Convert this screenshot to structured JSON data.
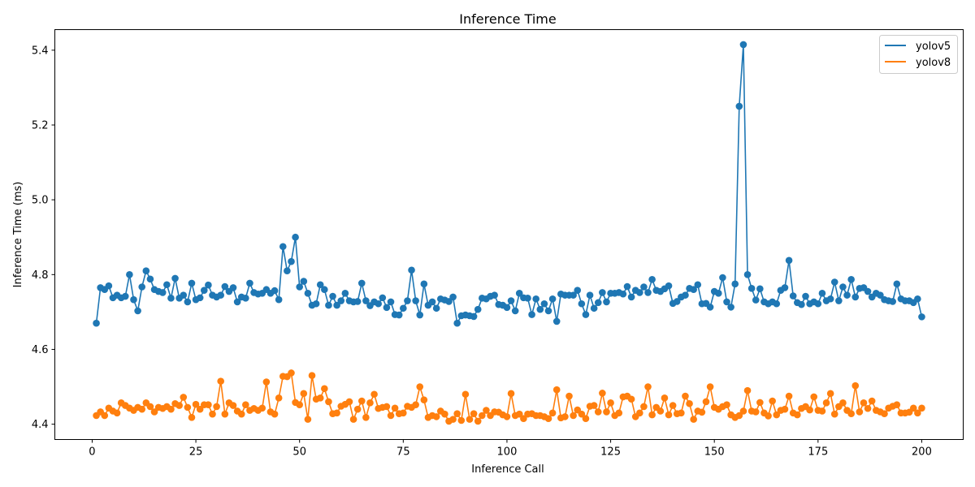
{
  "chart_data": {
    "type": "line",
    "title": "Inference Time",
    "xlabel": "Inference Call",
    "ylabel": "Inference Time (ms)",
    "xlim": [
      -9,
      210
    ],
    "ylim": [
      4.359,
      5.455
    ],
    "xticks": [
      0,
      25,
      50,
      75,
      100,
      125,
      150,
      175,
      200
    ],
    "yticks": [
      4.4,
      4.6,
      4.8,
      5.0,
      5.2,
      5.4
    ],
    "xtick_labels": [
      "0",
      "25",
      "50",
      "75",
      "100",
      "125",
      "150",
      "175",
      "200"
    ],
    "ytick_labels": [
      "4.4",
      "4.6",
      "4.8",
      "5.0",
      "5.2",
      "5.4"
    ],
    "grid": false,
    "legend_position": "top-right",
    "x": [
      1,
      2,
      3,
      4,
      5,
      6,
      7,
      8,
      9,
      10,
      11,
      12,
      13,
      14,
      15,
      16,
      17,
      18,
      19,
      20,
      21,
      22,
      23,
      24,
      25,
      26,
      27,
      28,
      29,
      30,
      31,
      32,
      33,
      34,
      35,
      36,
      37,
      38,
      39,
      40,
      41,
      42,
      43,
      44,
      45,
      46,
      47,
      48,
      49,
      50,
      51,
      52,
      53,
      54,
      55,
      56,
      57,
      58,
      59,
      60,
      61,
      62,
      63,
      64,
      65,
      66,
      67,
      68,
      69,
      70,
      71,
      72,
      73,
      74,
      75,
      76,
      77,
      78,
      79,
      80,
      81,
      82,
      83,
      84,
      85,
      86,
      87,
      88,
      89,
      90,
      91,
      92,
      93,
      94,
      95,
      96,
      97,
      98,
      99,
      100,
      101,
      102,
      103,
      104,
      105,
      106,
      107,
      108,
      109,
      110,
      111,
      112,
      113,
      114,
      115,
      116,
      117,
      118,
      119,
      120,
      121,
      122,
      123,
      124,
      125,
      126,
      127,
      128,
      129,
      130,
      131,
      132,
      133,
      134,
      135,
      136,
      137,
      138,
      139,
      140,
      141,
      142,
      143,
      144,
      145,
      146,
      147,
      148,
      149,
      150,
      151,
      152,
      153,
      154,
      155,
      156,
      157,
      158,
      159,
      160,
      161,
      162,
      163,
      164,
      165,
      166,
      167,
      168,
      169,
      170,
      171,
      172,
      173,
      174,
      175,
      176,
      177,
      178,
      179,
      180,
      181,
      182,
      183,
      184,
      185,
      186,
      187,
      188,
      189,
      190,
      191,
      192,
      193,
      194,
      195,
      196,
      197,
      198,
      199,
      200
    ],
    "series": [
      {
        "name": "yolov5",
        "color": "#1f77b4",
        "values": [
          4.67,
          4.765,
          4.76,
          4.77,
          4.738,
          4.745,
          4.738,
          4.742,
          4.8,
          4.733,
          4.703,
          4.767,
          4.81,
          4.788,
          4.76,
          4.755,
          4.752,
          4.773,
          4.737,
          4.79,
          4.737,
          4.745,
          4.727,
          4.777,
          4.733,
          4.738,
          4.758,
          4.772,
          4.745,
          4.74,
          4.745,
          4.768,
          4.755,
          4.765,
          4.727,
          4.74,
          4.737,
          4.777,
          4.752,
          4.748,
          4.75,
          4.76,
          4.75,
          4.757,
          4.733,
          4.875,
          4.81,
          4.835,
          4.9,
          4.767,
          4.782,
          4.75,
          4.718,
          4.722,
          4.773,
          4.76,
          4.718,
          4.742,
          4.718,
          4.73,
          4.75,
          4.73,
          4.727,
          4.728,
          4.777,
          4.73,
          4.717,
          4.727,
          4.722,
          4.738,
          4.712,
          4.727,
          4.693,
          4.692,
          4.71,
          4.73,
          4.812,
          4.73,
          4.692,
          4.775,
          4.718,
          4.727,
          4.71,
          4.735,
          4.732,
          4.728,
          4.74,
          4.67,
          4.69,
          4.692,
          4.69,
          4.688,
          4.707,
          4.737,
          4.735,
          4.742,
          4.745,
          4.72,
          4.718,
          4.712,
          4.73,
          4.703,
          4.75,
          4.738,
          4.737,
          4.693,
          4.735,
          4.707,
          4.722,
          4.703,
          4.735,
          4.675,
          4.748,
          4.745,
          4.745,
          4.745,
          4.758,
          4.722,
          4.693,
          4.745,
          4.71,
          4.725,
          4.752,
          4.727,
          4.75,
          4.75,
          4.752,
          4.748,
          4.768,
          4.74,
          4.758,
          4.752,
          4.767,
          4.752,
          4.787,
          4.758,
          4.755,
          4.762,
          4.77,
          4.723,
          4.728,
          4.74,
          4.745,
          4.763,
          4.76,
          4.773,
          4.722,
          4.723,
          4.713,
          4.755,
          4.75,
          4.792,
          4.727,
          4.713,
          4.775,
          5.25,
          5.415,
          4.8,
          4.763,
          4.732,
          4.762,
          4.727,
          4.722,
          4.727,
          4.722,
          4.758,
          4.765,
          4.838,
          4.743,
          4.725,
          4.72,
          4.742,
          4.722,
          4.727,
          4.722,
          4.75,
          4.73,
          4.735,
          4.78,
          4.73,
          4.767,
          4.745,
          4.787,
          4.74,
          4.763,
          4.765,
          4.755,
          4.74,
          4.75,
          4.745,
          4.733,
          4.73,
          4.728,
          4.775,
          4.735,
          4.73,
          4.73,
          4.725,
          4.735,
          4.687
        ]
      },
      {
        "name": "yolov8",
        "color": "#ff7f0e",
        "values": [
          4.423,
          4.433,
          4.423,
          4.443,
          4.435,
          4.43,
          4.457,
          4.45,
          4.443,
          4.437,
          4.445,
          4.44,
          4.457,
          4.447,
          4.433,
          4.445,
          4.442,
          4.447,
          4.44,
          4.455,
          4.45,
          4.472,
          4.445,
          4.418,
          4.453,
          4.44,
          4.452,
          4.452,
          4.427,
          4.447,
          4.515,
          4.427,
          4.457,
          4.45,
          4.435,
          4.427,
          4.452,
          4.437,
          4.442,
          4.437,
          4.443,
          4.513,
          4.433,
          4.427,
          4.47,
          4.528,
          4.527,
          4.537,
          4.458,
          4.452,
          4.482,
          4.413,
          4.53,
          4.467,
          4.47,
          4.495,
          4.46,
          4.428,
          4.43,
          4.448,
          4.453,
          4.46,
          4.413,
          4.44,
          4.462,
          4.418,
          4.457,
          4.48,
          4.442,
          4.445,
          4.447,
          4.423,
          4.443,
          4.428,
          4.43,
          4.448,
          4.445,
          4.452,
          4.5,
          4.465,
          4.418,
          4.423,
          4.42,
          4.435,
          4.427,
          4.408,
          4.413,
          4.428,
          4.41,
          4.48,
          4.413,
          4.428,
          4.408,
          4.423,
          4.437,
          4.423,
          4.433,
          4.432,
          4.425,
          4.42,
          4.482,
          4.423,
          4.427,
          4.415,
          4.427,
          4.428,
          4.423,
          4.423,
          4.42,
          4.415,
          4.43,
          4.492,
          4.417,
          4.42,
          4.475,
          4.423,
          4.438,
          4.427,
          4.415,
          4.448,
          4.45,
          4.433,
          4.483,
          4.433,
          4.457,
          4.423,
          4.43,
          4.473,
          4.475,
          4.467,
          4.42,
          4.43,
          4.447,
          4.5,
          4.425,
          4.445,
          4.435,
          4.47,
          4.425,
          4.45,
          4.428,
          4.43,
          4.475,
          4.455,
          4.413,
          4.435,
          4.432,
          4.46,
          4.5,
          4.445,
          4.44,
          4.447,
          4.452,
          4.425,
          4.418,
          4.423,
          4.435,
          4.49,
          4.435,
          4.433,
          4.458,
          4.43,
          4.422,
          4.462,
          4.425,
          4.437,
          4.44,
          4.475,
          4.43,
          4.425,
          4.442,
          4.447,
          4.438,
          4.473,
          4.437,
          4.435,
          4.457,
          4.482,
          4.427,
          4.447,
          4.457,
          4.437,
          4.428,
          4.503,
          4.433,
          4.457,
          4.442,
          4.462,
          4.437,
          4.433,
          4.428,
          4.443,
          4.448,
          4.452,
          4.43,
          4.43,
          4.432,
          4.443,
          4.43,
          4.443
        ]
      }
    ]
  }
}
